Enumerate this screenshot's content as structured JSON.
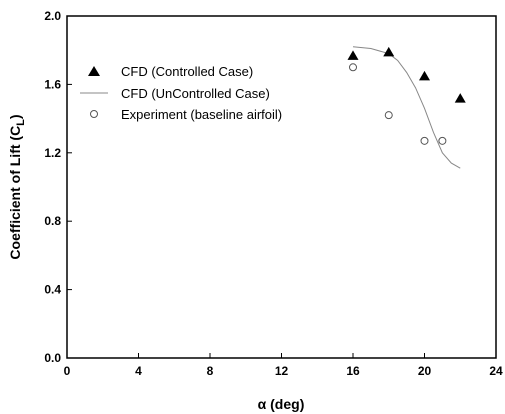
{
  "chart_data": {
    "type": "scatter",
    "title": "",
    "xlabel": "α (deg)",
    "ylabel": "Coefficient of Lift (C",
    "ylabel_subscript": "L",
    "ylabel_close": ")",
    "xlim": [
      0,
      24
    ],
    "ylim": [
      0.0,
      2.0
    ],
    "xticks": [
      "0",
      "4",
      "8",
      "12",
      "16",
      "20",
      "24"
    ],
    "yticks": [
      "0.0",
      "0.4",
      "0.8",
      "1.2",
      "1.6",
      "2.0"
    ],
    "grid": false,
    "legend_position": "top-left",
    "series": [
      {
        "name": "CFD (Controlled Case)",
        "marker": "filled-triangle",
        "color": "#000000",
        "x": [
          16,
          18,
          20,
          22
        ],
        "y": [
          1.77,
          1.79,
          1.65,
          1.52
        ]
      },
      {
        "name": "CFD (UnControlled Case)",
        "marker": "line",
        "color": "#888888",
        "x": [
          16,
          17,
          18,
          18.5,
          19,
          19.5,
          20,
          20.5,
          21,
          21.5,
          22
        ],
        "y": [
          1.82,
          1.81,
          1.78,
          1.74,
          1.67,
          1.58,
          1.46,
          1.32,
          1.2,
          1.14,
          1.11
        ]
      },
      {
        "name": "Experiment (baseline airfoil)",
        "marker": "open-circle",
        "color": "#555555",
        "x": [
          16,
          18,
          20,
          21
        ],
        "y": [
          1.7,
          1.42,
          1.27,
          1.27
        ]
      }
    ]
  }
}
